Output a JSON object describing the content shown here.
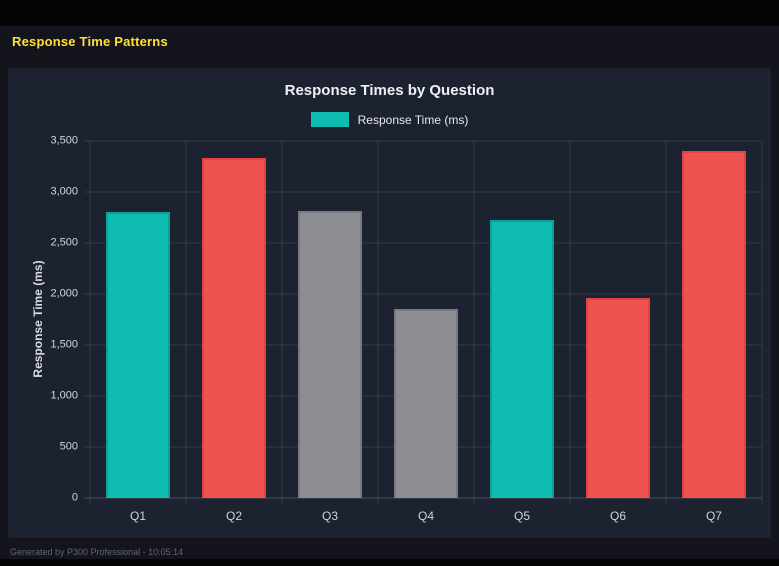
{
  "header": {
    "title": "Response Time Patterns"
  },
  "footer": {
    "text": "Generated by P300 Professional - 10:05:14"
  },
  "chart_data": {
    "type": "bar",
    "title": "Response Times by Question",
    "legend": [
      {
        "label": "Response Time (ms)",
        "color": "#0fbdb0"
      }
    ],
    "categories": [
      "Q1",
      "Q2",
      "Q3",
      "Q4",
      "Q5",
      "Q6",
      "Q7"
    ],
    "values": [
      2800,
      3330,
      2810,
      1850,
      2730,
      1960,
      3400
    ],
    "bar_colors": [
      "#0fbdb0",
      "#ef5350",
      "#8d8e94",
      "#8d8e94",
      "#0fbdb0",
      "#ef5350",
      "#ef5350"
    ],
    "bar_border_colors": [
      "#0ba196",
      "#e04341",
      "#797a80",
      "#797a80",
      "#0ba196",
      "#e04341",
      "#e04341"
    ],
    "xlabel": "",
    "ylabel": "Response Time (ms)",
    "ylim": [
      0,
      3500
    ],
    "yticks": [
      0,
      500,
      1000,
      1500,
      2000,
      2500,
      3000,
      3500
    ],
    "ytick_labels": [
      "0",
      "500",
      "1,000",
      "1,500",
      "2,000",
      "2,500",
      "3,000",
      "3,500"
    ],
    "grid": true,
    "legend_position": "top-center"
  }
}
